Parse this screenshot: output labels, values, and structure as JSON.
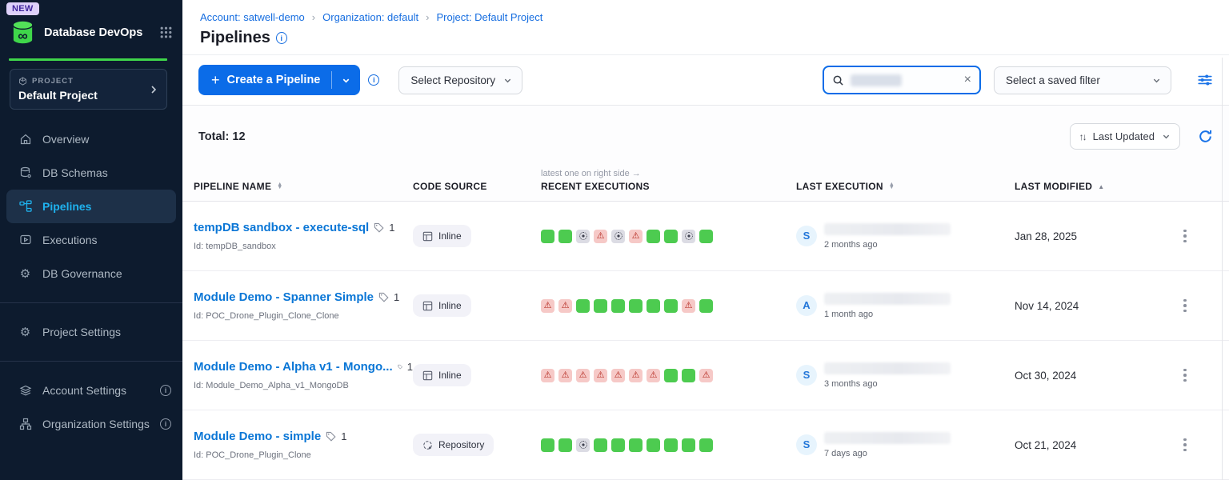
{
  "colors": {
    "brand_green": "#3fd64a",
    "primary_blue": "#0b6ce8",
    "link_blue": "#176ee0",
    "active_cyan": "#1fb2ee",
    "success": "#4dcb50",
    "failed_bg": "#f6c9c7",
    "failed_icon": "#b3261c",
    "aborted_bg": "#dcdce4",
    "sidebar_bg": "#0d1b2e"
  },
  "sidebar": {
    "new_badge": "NEW",
    "app_title": "Database DevOps",
    "project_label": "PROJECT",
    "project_name": "Default Project",
    "nav": [
      {
        "label": "Overview"
      },
      {
        "label": "DB Schemas"
      },
      {
        "label": "Pipelines"
      },
      {
        "label": "Executions"
      },
      {
        "label": "DB Governance"
      },
      {
        "label": "Project Settings"
      },
      {
        "label": "Account Settings"
      },
      {
        "label": "Organization Settings"
      }
    ]
  },
  "header": {
    "breadcrumbs": [
      "Account: satwell-demo",
      "Organization: default",
      "Project: Default Project"
    ],
    "separator": "›",
    "title": "Pipelines"
  },
  "toolbar": {
    "create_label": "Create a Pipeline",
    "plus": "+",
    "repo_select": "Select Repository",
    "saved_filter_select": "Select a saved filter",
    "clear_x": "×"
  },
  "list": {
    "total_label": "Total: 12",
    "sort_icon": "↑↓",
    "sort_label": "Last Updated"
  },
  "table": {
    "hint": "latest one on right side →",
    "headers": {
      "name": "PIPELINE NAME",
      "source": "CODE SOURCE",
      "executions": "RECENT EXECUTIONS",
      "last_execution": "LAST EXECUTION",
      "last_modified": "LAST MODIFIED"
    },
    "rows": [
      {
        "name": "tempDB sandbox - execute-sql",
        "tag_count": "1",
        "id": "Id: tempDB_sandbox",
        "source": "Inline",
        "executions": [
          "s",
          "s",
          "a",
          "f",
          "a",
          "f",
          "s",
          "s",
          "a",
          "s"
        ],
        "avatar": "S",
        "ago": "2 months ago",
        "modified": "Jan 28, 2025"
      },
      {
        "name": "Module Demo - Spanner Simple",
        "tag_count": "1",
        "id": "Id: POC_Drone_Plugin_Clone_Clone",
        "source": "Inline",
        "executions": [
          "f",
          "f",
          "s",
          "s",
          "s",
          "s",
          "s",
          "s",
          "f",
          "s"
        ],
        "avatar": "A",
        "ago": "1 month ago",
        "modified": "Nov 14, 2024"
      },
      {
        "name": "Module Demo - Alpha v1 - Mongo...",
        "tag_count": "1",
        "id": "Id: Module_Demo_Alpha_v1_MongoDB",
        "source": "Inline",
        "executions": [
          "f",
          "f",
          "f",
          "f",
          "f",
          "f",
          "f",
          "s",
          "s",
          "f"
        ],
        "avatar": "S",
        "ago": "3 months ago",
        "modified": "Oct 30, 2024"
      },
      {
        "name": "Module Demo - simple",
        "tag_count": "1",
        "id": "Id: POC_Drone_Plugin_Clone",
        "source": "Repository",
        "executions": [
          "s",
          "s",
          "a",
          "s",
          "s",
          "s",
          "s",
          "s",
          "s",
          "s"
        ],
        "avatar": "S",
        "ago": "7 days ago",
        "modified": "Oct 21, 2024"
      }
    ]
  }
}
